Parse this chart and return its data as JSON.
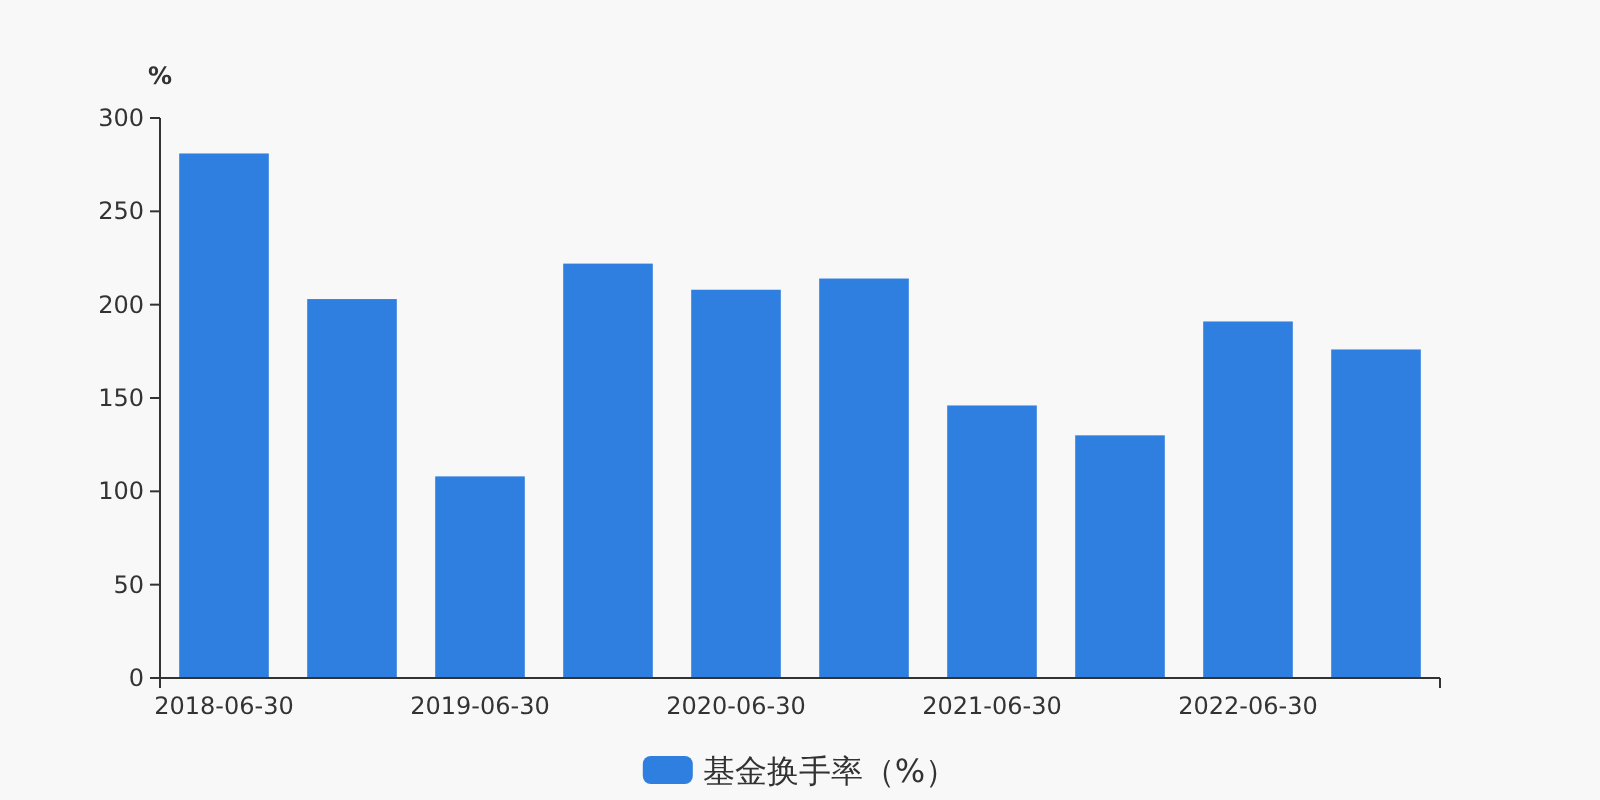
{
  "chart_data": {
    "type": "bar",
    "ylabel": "%",
    "categories": [
      "2018-06-30",
      null,
      "2019-06-30",
      null,
      "2020-06-30",
      null,
      "2021-06-30",
      null,
      "2022-06-30",
      null
    ],
    "series": [
      {
        "name": "基金换手率（%）",
        "color": "#2e7fe0",
        "values": [
          281,
          203,
          108,
          222,
          208,
          214,
          146,
          130,
          191,
          176
        ]
      }
    ],
    "ylim": [
      0,
      300
    ],
    "yticks": [
      0,
      50,
      100,
      150,
      200,
      250,
      300
    ],
    "legend": "bottom"
  }
}
